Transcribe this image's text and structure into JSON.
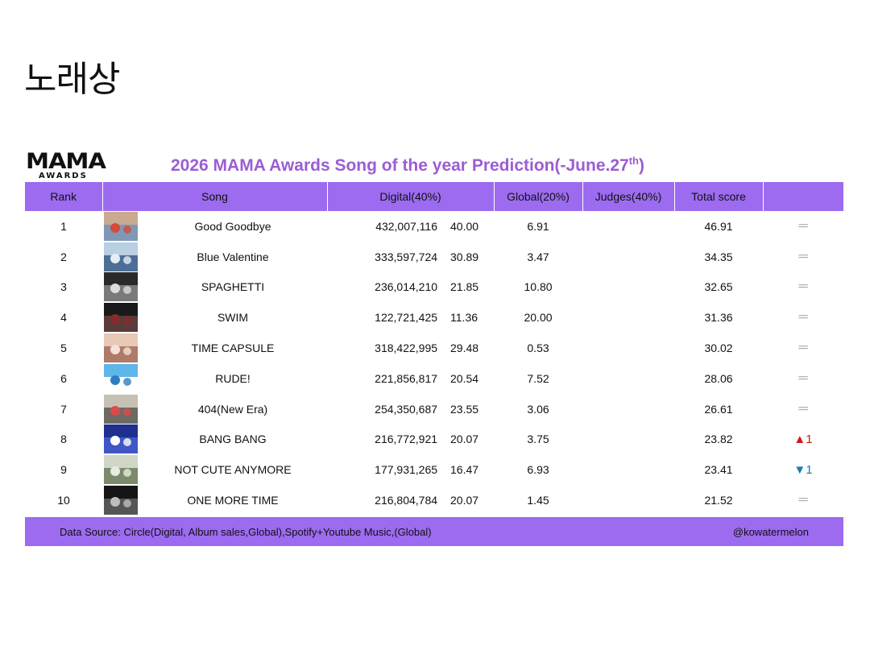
{
  "page_title": "노래상",
  "logo": {
    "main": "MAMA",
    "sub": "AWARDS"
  },
  "chart_title": "2026 MAMA Awards Song of the year Prediction(-June.27",
  "chart_title_sup": "th",
  "chart_title_end": ")",
  "headers": {
    "rank": "Rank",
    "song": "Song",
    "digital": "Digital(40%)",
    "global": "Global(20%)",
    "judges": "Judges(40%)",
    "total": "Total score",
    "change": ""
  },
  "rows": [
    {
      "rank": "1",
      "song": "Good Goodbye",
      "digital_count": "432,007,116",
      "digital_score": "40.00",
      "global": "6.91",
      "judges": "",
      "total": "46.91",
      "change": "═",
      "change_type": "same",
      "cover_colors": [
        "#c9a98f",
        "#7f98b5",
        "#d24b3c"
      ]
    },
    {
      "rank": "2",
      "song": "Blue Valentine",
      "digital_count": "333,597,724",
      "digital_score": "30.89",
      "global": "3.47",
      "judges": "",
      "total": "34.35",
      "change": "═",
      "change_type": "same",
      "cover_colors": [
        "#b9cfe2",
        "#4d6f96",
        "#e6eef4"
      ]
    },
    {
      "rank": "3",
      "song": "SPAGHETTI",
      "digital_count": "236,014,210",
      "digital_score": "21.85",
      "global": "10.80",
      "judges": "",
      "total": "32.65",
      "change": "═",
      "change_type": "same",
      "cover_colors": [
        "#2a2a2a",
        "#7a7a7a",
        "#dcdcdc"
      ]
    },
    {
      "rank": "4",
      "song": "SWIM",
      "digital_count": "122,721,425",
      "digital_score": "11.36",
      "global": "20.00",
      "judges": "",
      "total": "31.36",
      "change": "═",
      "change_type": "same",
      "cover_colors": [
        "#1a1a1a",
        "#5a3a3a",
        "#8a2a2a"
      ]
    },
    {
      "rank": "5",
      "song": "TIME CAPSULE",
      "digital_count": "318,422,995",
      "digital_score": "29.48",
      "global": "0.53",
      "judges": "",
      "total": "30.02",
      "change": "═",
      "change_type": "same",
      "cover_colors": [
        "#e8c9b8",
        "#b07a6a",
        "#f3e2d6"
      ]
    },
    {
      "rank": "6",
      "song": "RUDE!",
      "digital_count": "221,856,817",
      "digital_score": "20.54",
      "global": "7.52",
      "judges": "",
      "total": "28.06",
      "change": "═",
      "change_type": "same",
      "cover_colors": [
        "#5fb6e8",
        "#ffffff",
        "#2f7dc0"
      ]
    },
    {
      "rank": "7",
      "song": "404(New Era)",
      "digital_count": "254,350,687",
      "digital_score": "23.55",
      "global": "3.06",
      "judges": "",
      "total": "26.61",
      "change": "═",
      "change_type": "same",
      "cover_colors": [
        "#c6c0b4",
        "#6d6a63",
        "#d94a4a"
      ]
    },
    {
      "rank": "8",
      "song": "BANG BANG",
      "digital_count": "216,772,921",
      "digital_score": "20.07",
      "global": "3.75",
      "judges": "",
      "total": "23.82",
      "change": "▲1",
      "change_type": "up",
      "cover_colors": [
        "#1f2f8f",
        "#3f56c4",
        "#ffffff"
      ]
    },
    {
      "rank": "9",
      "song": "NOT CUTE ANYMORE",
      "digital_count": "177,931,265",
      "digital_score": "16.47",
      "global": "6.93",
      "judges": "",
      "total": "23.41",
      "change": "▼1",
      "change_type": "down",
      "cover_colors": [
        "#cfd6c8",
        "#7a8a6a",
        "#e7ebe0"
      ]
    },
    {
      "rank": "10",
      "song": "ONE MORE TIME",
      "digital_count": "216,804,784",
      "digital_score": "20.07",
      "global": "1.45",
      "judges": "",
      "total": "21.52",
      "change": "═",
      "change_type": "same",
      "cover_colors": [
        "#151515",
        "#555555",
        "#bdbdbd"
      ]
    }
  ],
  "footer": {
    "source": "Data Source: Circle(Digital, Album sales,Global),Spotify+Youtube Music,(Global)",
    "credit": "@kowatermelon"
  },
  "colors": {
    "accent": "#9c6bf0",
    "title": "#9b5dd4",
    "up": "#d21818",
    "down": "#1c7ab8"
  }
}
